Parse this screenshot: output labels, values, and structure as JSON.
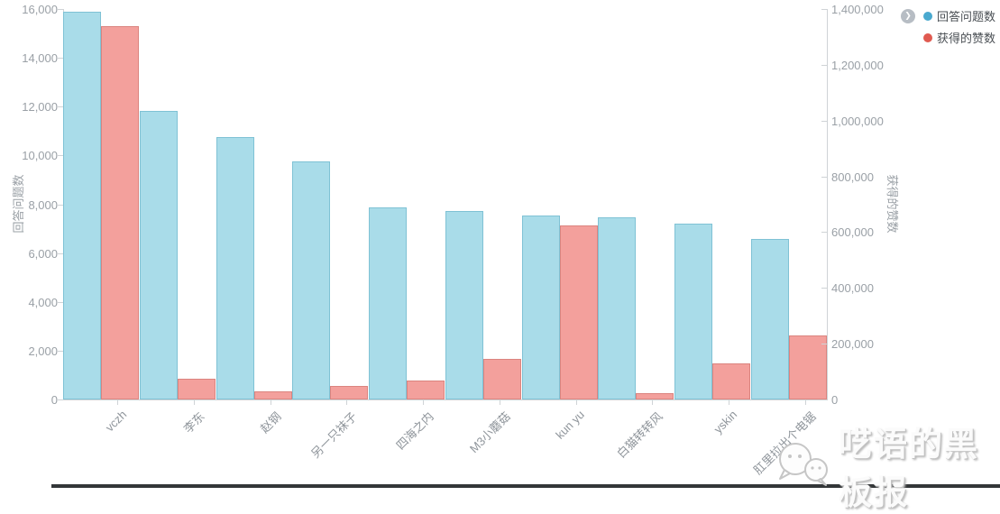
{
  "chart_data": {
    "type": "bar",
    "title": "",
    "categories": [
      "vczh",
      "李东",
      "赵钢",
      "另一只袜子",
      "四海之内",
      "M3小蘑菇",
      "kun yu",
      "白猫转转风",
      "yskin",
      "肛里拉出个电锯"
    ],
    "series": [
      {
        "name": "回答问题数",
        "axis": "left",
        "fill": "#a9dce9",
        "stroke": "#7fc2d5",
        "legend_color": "#4aa9cf",
        "values": [
          15900,
          11840,
          10740,
          9760,
          7870,
          7720,
          7540,
          7460,
          7190,
          6580
        ]
      },
      {
        "name": "获得的赞数",
        "axis": "right",
        "fill": "#f3a09c",
        "stroke": "#db847f",
        "legend_color": "#e05a50",
        "values": [
          1340000,
          74000,
          29000,
          47000,
          69000,
          145000,
          624000,
          22000,
          130000,
          230000
        ]
      }
    ],
    "left_axis": {
      "title": "回答问题数",
      "min": 0,
      "max": 16000,
      "tick_step": 2000
    },
    "right_axis": {
      "title": "获得的赞数",
      "min": 0,
      "max": 1400000,
      "tick_step": 200000
    },
    "legend_position": "top-right",
    "grid": false,
    "x_label_rotation": -45
  },
  "legend": {
    "toggle_icon": "❯"
  },
  "watermark": {
    "text": "呓语的黑板报"
  }
}
